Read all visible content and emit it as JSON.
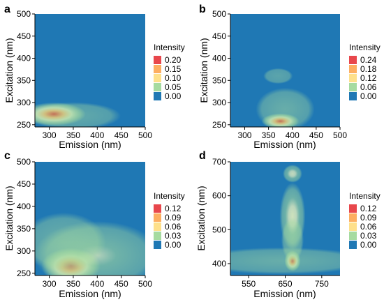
{
  "chart_data": [
    {
      "type": "heatmap",
      "panel_label": "a",
      "xlabel": "Emission (nm)",
      "ylabel": "Excitation (nm)",
      "xlim": [
        270,
        500
      ],
      "ylim": [
        245,
        500
      ],
      "xticks": [
        300,
        350,
        400,
        450,
        500
      ],
      "yticks": [
        250,
        300,
        350,
        400,
        450,
        500
      ],
      "legend": {
        "title": "Intensity",
        "placement": "right",
        "values": [
          "0.20",
          "0.15",
          "0.10",
          "0.05",
          "0.00"
        ]
      },
      "color_scale": [
        "#1f78b4",
        "#a6dba0",
        "#ffffbf",
        "#fdae61",
        "#d7191c"
      ],
      "peaks": [
        {
          "x": 310,
          "y": 274,
          "intensity": 0.22,
          "sx": 30,
          "sy": 12
        },
        {
          "x": 350,
          "y": 270,
          "intensity": 0.04,
          "sx": 45,
          "sy": 14
        }
      ]
    },
    {
      "type": "heatmap",
      "panel_label": "b",
      "xlabel": "Emission (nm)",
      "ylabel": "Excitation (nm)",
      "xlim": [
        270,
        500
      ],
      "ylim": [
        245,
        500
      ],
      "xticks": [
        300,
        350,
        400,
        450,
        500
      ],
      "yticks": [
        250,
        300,
        350,
        400,
        450,
        500
      ],
      "legend": {
        "title": "Intensity",
        "placement": "right",
        "values": [
          "0.24",
          "0.18",
          "0.12",
          "0.06",
          "0.00"
        ]
      },
      "color_scale": [
        "#1f78b4",
        "#a6dba0",
        "#ffffbf",
        "#fdae61",
        "#d7191c"
      ],
      "peaks": [
        {
          "x": 375,
          "y": 258,
          "intensity": 0.24,
          "sx": 18,
          "sy": 8
        },
        {
          "x": 385,
          "y": 285,
          "intensity": 0.06,
          "sx": 28,
          "sy": 22
        },
        {
          "x": 370,
          "y": 360,
          "intensity": 0.03,
          "sx": 14,
          "sy": 8
        }
      ]
    },
    {
      "type": "heatmap",
      "panel_label": "c",
      "xlabel": "Emission (nm)",
      "ylabel": "Excitation (nm)",
      "xlim": [
        270,
        500
      ],
      "ylim": [
        245,
        500
      ],
      "xticks": [
        300,
        350,
        400,
        450,
        500
      ],
      "yticks": [
        250,
        300,
        350,
        400,
        450,
        500
      ],
      "legend": {
        "title": "Intensity",
        "placement": "right",
        "values": [
          "0.12",
          "0.09",
          "0.06",
          "0.03",
          "0.00"
        ]
      },
      "color_scale": [
        "#1f78b4",
        "#a6dba0",
        "#ffffbf",
        "#fdae61",
        "#d7191c"
      ],
      "peaks": [
        {
          "x": 345,
          "y": 267,
          "intensity": 0.12,
          "sx": 28,
          "sy": 18
        },
        {
          "x": 400,
          "y": 290,
          "intensity": 0.05,
          "sx": 60,
          "sy": 35
        },
        {
          "x": 330,
          "y": 320,
          "intensity": 0.03,
          "sx": 40,
          "sy": 30
        }
      ]
    },
    {
      "type": "heatmap",
      "panel_label": "d",
      "xlabel": "Emission (nm)",
      "ylabel": "Excitation (nm)",
      "xlim": [
        500,
        800
      ],
      "ylim": [
        365,
        700
      ],
      "xticks": [
        550,
        650,
        750
      ],
      "yticks": [
        400,
        500,
        600,
        700
      ],
      "legend": {
        "title": "Intensity",
        "placement": "right",
        "values": [
          "0.12",
          "0.09",
          "0.06",
          "0.03",
          "0.00"
        ]
      },
      "color_scale": [
        "#1f78b4",
        "#a6dba0",
        "#ffffbf",
        "#fdae61",
        "#d7191c"
      ],
      "peaks": [
        {
          "x": 670,
          "y": 408,
          "intensity": 0.13,
          "sx": 10,
          "sy": 14
        },
        {
          "x": 670,
          "y": 540,
          "intensity": 0.07,
          "sx": 16,
          "sy": 45
        },
        {
          "x": 670,
          "y": 665,
          "intensity": 0.06,
          "sx": 12,
          "sy": 12
        },
        {
          "x": 670,
          "y": 470,
          "intensity": 0.04,
          "sx": 14,
          "sy": 30
        },
        {
          "x": 640,
          "y": 408,
          "intensity": 0.03,
          "sx": 110,
          "sy": 18
        }
      ]
    }
  ]
}
